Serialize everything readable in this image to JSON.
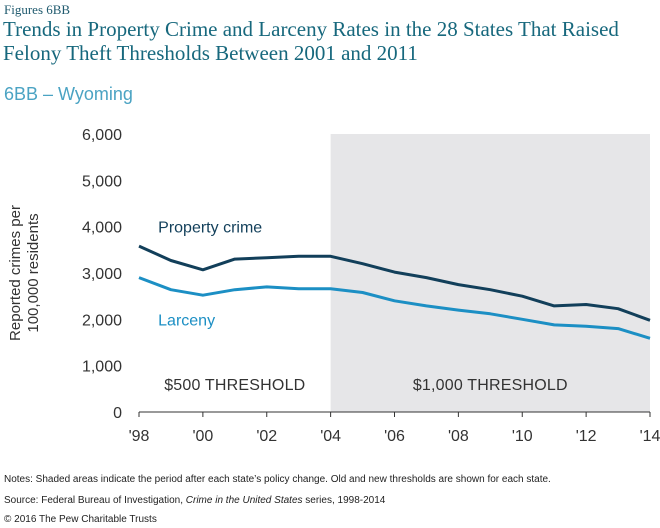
{
  "figure_label": "Figures 6BB",
  "title": "Trends in Property Crime and Larceny Rates in the 28 States That Raised Felony Theft Thresholds Between 2001 and 2011",
  "subtitle": "6BB – Wyoming",
  "notes": "Notes: Shaded areas indicate the period after each state’s policy change. Old and new thresholds are shown for each state.",
  "source": {
    "prefix": "Source: Federal Bureau of Investigation, ",
    "italic": "Crime in the United States",
    "suffix": " series, 1998-2014"
  },
  "copyright": "© 2016 The Pew Charitable Trusts",
  "colors": {
    "property_crime": "#123f5a",
    "larceny": "#1c8fc4",
    "shade": "#e6e6e8",
    "axis": "#333333"
  },
  "chart_data": {
    "type": "line",
    "ylabel": "Reported crimes per 100,000 residents",
    "ylabel_lines": [
      "Reported crimes per",
      "100,000 residents"
    ],
    "ylim": [
      0,
      6000
    ],
    "xlim": [
      1998,
      2014
    ],
    "x_ticks": [
      1998,
      2000,
      2002,
      2004,
      2006,
      2008,
      2010,
      2012,
      2014
    ],
    "x_tick_labels": [
      "'98",
      "'00",
      "'02",
      "'04",
      "'06",
      "'08",
      "'10",
      "'12",
      "'14"
    ],
    "y_ticks": [
      0,
      1000,
      2000,
      3000,
      4000,
      5000,
      6000
    ],
    "y_tick_labels": [
      "0",
      "1,000",
      "2,000",
      "3,000",
      "4,000",
      "5,000",
      "6,000"
    ],
    "shaded_period": {
      "from": 2004,
      "to": 2014
    },
    "threshold_labels": [
      {
        "text": "$500 THRESHOLD",
        "center_year": 2001
      },
      {
        "text": "$1,000 THRESHOLD",
        "center_year": 2009
      }
    ],
    "x": [
      1998,
      1999,
      2000,
      2001,
      2002,
      2003,
      2004,
      2005,
      2006,
      2007,
      2008,
      2009,
      2010,
      2011,
      2012,
      2013,
      2014
    ],
    "series": [
      {
        "name": "Property crime",
        "label_year": 1998.6,
        "label_value": 4000,
        "values": [
          3580,
          3270,
          3070,
          3300,
          3330,
          3360,
          3360,
          3200,
          3020,
          2900,
          2750,
          2640,
          2500,
          2290,
          2320,
          2230,
          1980
        ]
      },
      {
        "name": "Larceny",
        "label_year": 1998.6,
        "label_value": 2000,
        "values": [
          2900,
          2640,
          2520,
          2640,
          2700,
          2660,
          2660,
          2580,
          2400,
          2290,
          2200,
          2120,
          2000,
          1880,
          1850,
          1800,
          1590
        ]
      }
    ],
    "grid": false,
    "legend": "inline labels"
  }
}
